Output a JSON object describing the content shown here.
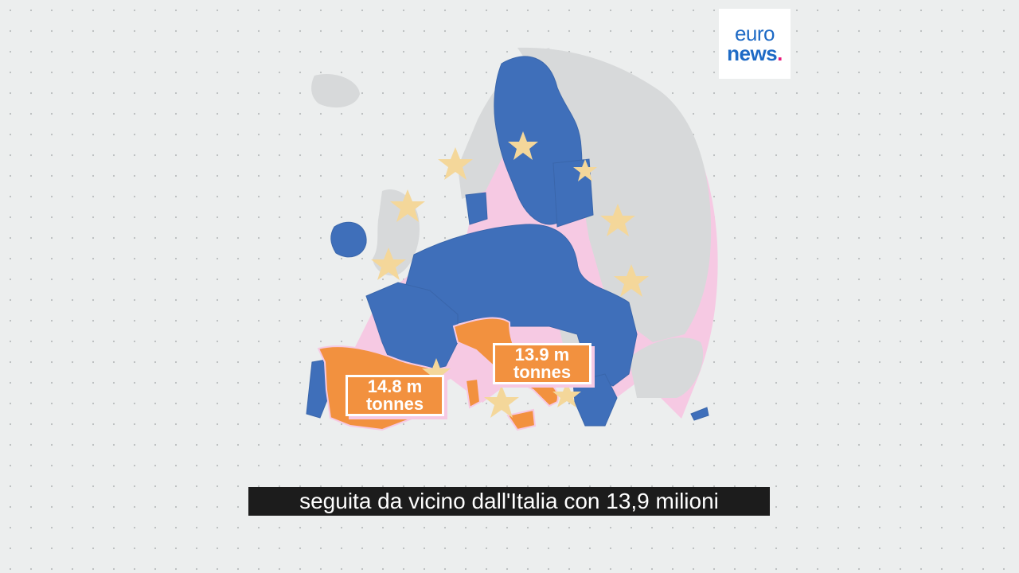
{
  "logo": {
    "line1": "euro",
    "line2": "news",
    "dot": "."
  },
  "callouts": [
    {
      "country": "Spain",
      "value": "14.8 m",
      "unit": "tonnes"
    },
    {
      "country": "Italy",
      "value": "13.9 m",
      "unit": "tonnes"
    }
  ],
  "subtitle": "seguita da vicino dall'Italia con 13,9 milioni",
  "colors": {
    "background": "#eceeee",
    "eu_member": "#3f6fba",
    "non_eu": "#d7d9da",
    "highlight": "#f2913f",
    "star": "#f4d79a",
    "shadow": "#f6c9e3",
    "logo_text": "#1e6ac5",
    "logo_dot": "#e9197b"
  },
  "highlighted_countries": [
    "Spain",
    "Italy"
  ]
}
